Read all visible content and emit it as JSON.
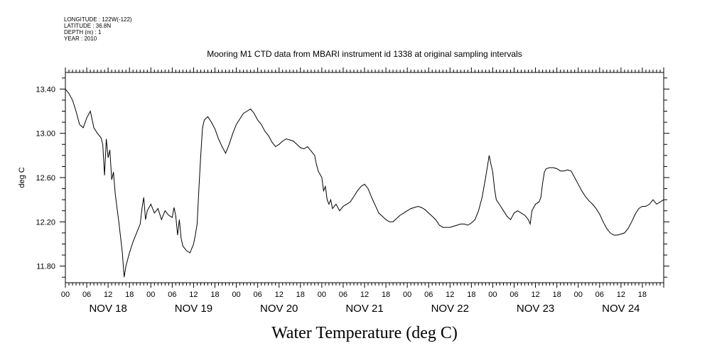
{
  "header": {
    "meta_lines": [
      "LONGITUDE : 122W(-122)",
      "LATITUDE : 36.8N",
      "DEPTH (m) : 1",
      "YEAR : 2010"
    ]
  },
  "chart_data": {
    "type": "line",
    "title": "Mooring M1 CTD data from MBARI instrument id 1338 at original sampling intervals",
    "ylabel": "deg C",
    "xlabel": "Water Temperature (deg C)",
    "ylim": [
      11.65,
      13.55
    ],
    "xlim_hours": [
      0,
      168
    ],
    "yticks": [
      11.8,
      12.2,
      12.6,
      13.0,
      13.4
    ],
    "ytick_labels": [
      "11.80",
      "12.20",
      "12.60",
      "13.00",
      "13.40"
    ],
    "hour_ticks": [
      "00",
      "06",
      "12",
      "18"
    ],
    "days": [
      "NOV 18",
      "NOV 19",
      "NOV 20",
      "NOV 21",
      "NOV 22",
      "NOV 23",
      "NOV 24"
    ],
    "series": [
      {
        "values": [
          [
            0,
            13.4
          ],
          [
            1,
            13.36
          ],
          [
            2,
            13.3
          ],
          [
            3,
            13.2
          ],
          [
            4,
            13.08
          ],
          [
            5,
            13.05
          ],
          [
            6,
            13.14
          ],
          [
            7,
            13.2
          ],
          [
            8,
            13.05
          ],
          [
            9,
            13.0
          ],
          [
            10,
            12.96
          ],
          [
            10.5,
            12.9
          ],
          [
            11,
            12.62
          ],
          [
            11.5,
            12.95
          ],
          [
            12,
            12.78
          ],
          [
            12.5,
            12.85
          ],
          [
            13,
            12.58
          ],
          [
            13.5,
            12.65
          ],
          [
            14,
            12.45
          ],
          [
            15,
            12.2
          ],
          [
            16,
            11.92
          ],
          [
            16.5,
            11.7
          ],
          [
            17,
            11.8
          ],
          [
            18,
            11.92
          ],
          [
            19,
            12.02
          ],
          [
            20,
            12.1
          ],
          [
            21,
            12.18
          ],
          [
            21.5,
            12.32
          ],
          [
            22,
            12.42
          ],
          [
            22.5,
            12.22
          ],
          [
            23,
            12.3
          ],
          [
            24,
            12.36
          ],
          [
            25,
            12.28
          ],
          [
            26,
            12.32
          ],
          [
            27,
            12.22
          ],
          [
            28,
            12.3
          ],
          [
            29,
            12.26
          ],
          [
            30,
            12.24
          ],
          [
            30.5,
            12.33
          ],
          [
            31,
            12.25
          ],
          [
            31.5,
            12.08
          ],
          [
            32,
            12.22
          ],
          [
            32.5,
            12.05
          ],
          [
            33,
            11.98
          ],
          [
            34,
            11.94
          ],
          [
            35,
            11.92
          ],
          [
            36,
            12.0
          ],
          [
            36.5,
            12.08
          ],
          [
            37,
            12.18
          ],
          [
            37.5,
            12.5
          ],
          [
            38,
            12.8
          ],
          [
            38.5,
            13.05
          ],
          [
            39,
            13.12
          ],
          [
            40,
            13.15
          ],
          [
            41,
            13.1
          ],
          [
            42,
            13.04
          ],
          [
            43,
            12.95
          ],
          [
            44,
            12.88
          ],
          [
            45,
            12.82
          ],
          [
            46,
            12.9
          ],
          [
            47,
            13.0
          ],
          [
            48,
            13.08
          ],
          [
            49,
            13.13
          ],
          [
            50,
            13.18
          ],
          [
            51,
            13.2
          ],
          [
            52,
            13.22
          ],
          [
            53,
            13.18
          ],
          [
            54,
            13.12
          ],
          [
            55,
            13.08
          ],
          [
            56,
            13.02
          ],
          [
            57,
            12.98
          ],
          [
            58,
            12.92
          ],
          [
            59,
            12.88
          ],
          [
            60,
            12.9
          ],
          [
            61,
            12.93
          ],
          [
            62,
            12.95
          ],
          [
            63,
            12.94
          ],
          [
            64,
            12.93
          ],
          [
            65,
            12.9
          ],
          [
            66,
            12.87
          ],
          [
            67,
            12.86
          ],
          [
            68,
            12.88
          ],
          [
            69,
            12.84
          ],
          [
            70,
            12.8
          ],
          [
            70.5,
            12.72
          ],
          [
            71,
            12.66
          ],
          [
            72,
            12.6
          ],
          [
            72.5,
            12.48
          ],
          [
            73,
            12.52
          ],
          [
            73.5,
            12.4
          ],
          [
            74,
            12.36
          ],
          [
            74.5,
            12.4
          ],
          [
            75,
            12.32
          ],
          [
            76,
            12.36
          ],
          [
            77,
            12.3
          ],
          [
            78,
            12.34
          ],
          [
            79,
            12.36
          ],
          [
            80,
            12.38
          ],
          [
            81,
            12.43
          ],
          [
            82,
            12.48
          ],
          [
            83,
            12.52
          ],
          [
            84,
            12.54
          ],
          [
            85,
            12.5
          ],
          [
            86,
            12.42
          ],
          [
            87,
            12.35
          ],
          [
            88,
            12.28
          ],
          [
            89,
            12.25
          ],
          [
            90,
            12.22
          ],
          [
            91,
            12.2
          ],
          [
            92,
            12.2
          ],
          [
            93,
            12.23
          ],
          [
            94,
            12.26
          ],
          [
            95,
            12.28
          ],
          [
            96,
            12.3
          ],
          [
            97,
            12.32
          ],
          [
            98,
            12.33
          ],
          [
            99,
            12.34
          ],
          [
            100,
            12.33
          ],
          [
            101,
            12.31
          ],
          [
            102,
            12.28
          ],
          [
            103,
            12.25
          ],
          [
            104,
            12.22
          ],
          [
            105,
            12.17
          ],
          [
            106,
            12.15
          ],
          [
            107,
            12.15
          ],
          [
            108,
            12.15
          ],
          [
            109,
            12.16
          ],
          [
            110,
            12.17
          ],
          [
            111,
            12.18
          ],
          [
            112,
            12.18
          ],
          [
            113,
            12.17
          ],
          [
            114,
            12.19
          ],
          [
            115,
            12.22
          ],
          [
            116,
            12.3
          ],
          [
            117,
            12.42
          ],
          [
            118,
            12.6
          ],
          [
            118.5,
            12.7
          ],
          [
            119,
            12.8
          ],
          [
            119.5,
            12.72
          ],
          [
            120,
            12.65
          ],
          [
            120.5,
            12.5
          ],
          [
            121,
            12.4
          ],
          [
            122,
            12.35
          ],
          [
            123,
            12.3
          ],
          [
            124,
            12.25
          ],
          [
            125,
            12.22
          ],
          [
            126,
            12.28
          ],
          [
            127,
            12.3
          ],
          [
            128,
            12.28
          ],
          [
            129,
            12.26
          ],
          [
            130,
            12.22
          ],
          [
            130.5,
            12.18
          ],
          [
            131,
            12.3
          ],
          [
            132,
            12.36
          ],
          [
            133,
            12.38
          ],
          [
            133.5,
            12.42
          ],
          [
            134,
            12.55
          ],
          [
            134.5,
            12.65
          ],
          [
            135,
            12.68
          ],
          [
            136,
            12.69
          ],
          [
            137,
            12.69
          ],
          [
            138,
            12.68
          ],
          [
            139,
            12.66
          ],
          [
            140,
            12.66
          ],
          [
            141,
            12.67
          ],
          [
            142,
            12.66
          ],
          [
            143,
            12.6
          ],
          [
            144,
            12.54
          ],
          [
            145,
            12.48
          ],
          [
            146,
            12.43
          ],
          [
            147,
            12.39
          ],
          [
            148,
            12.36
          ],
          [
            149,
            12.32
          ],
          [
            150,
            12.27
          ],
          [
            151,
            12.2
          ],
          [
            152,
            12.14
          ],
          [
            153,
            12.1
          ],
          [
            154,
            12.08
          ],
          [
            155,
            12.08
          ],
          [
            156,
            12.09
          ],
          [
            157,
            12.1
          ],
          [
            158,
            12.14
          ],
          [
            159,
            12.2
          ],
          [
            160,
            12.27
          ],
          [
            161,
            12.32
          ],
          [
            162,
            12.34
          ],
          [
            163,
            12.34
          ],
          [
            164,
            12.36
          ],
          [
            165,
            12.4
          ],
          [
            166,
            12.36
          ],
          [
            167,
            12.38
          ],
          [
            168,
            12.4
          ]
        ]
      }
    ]
  }
}
